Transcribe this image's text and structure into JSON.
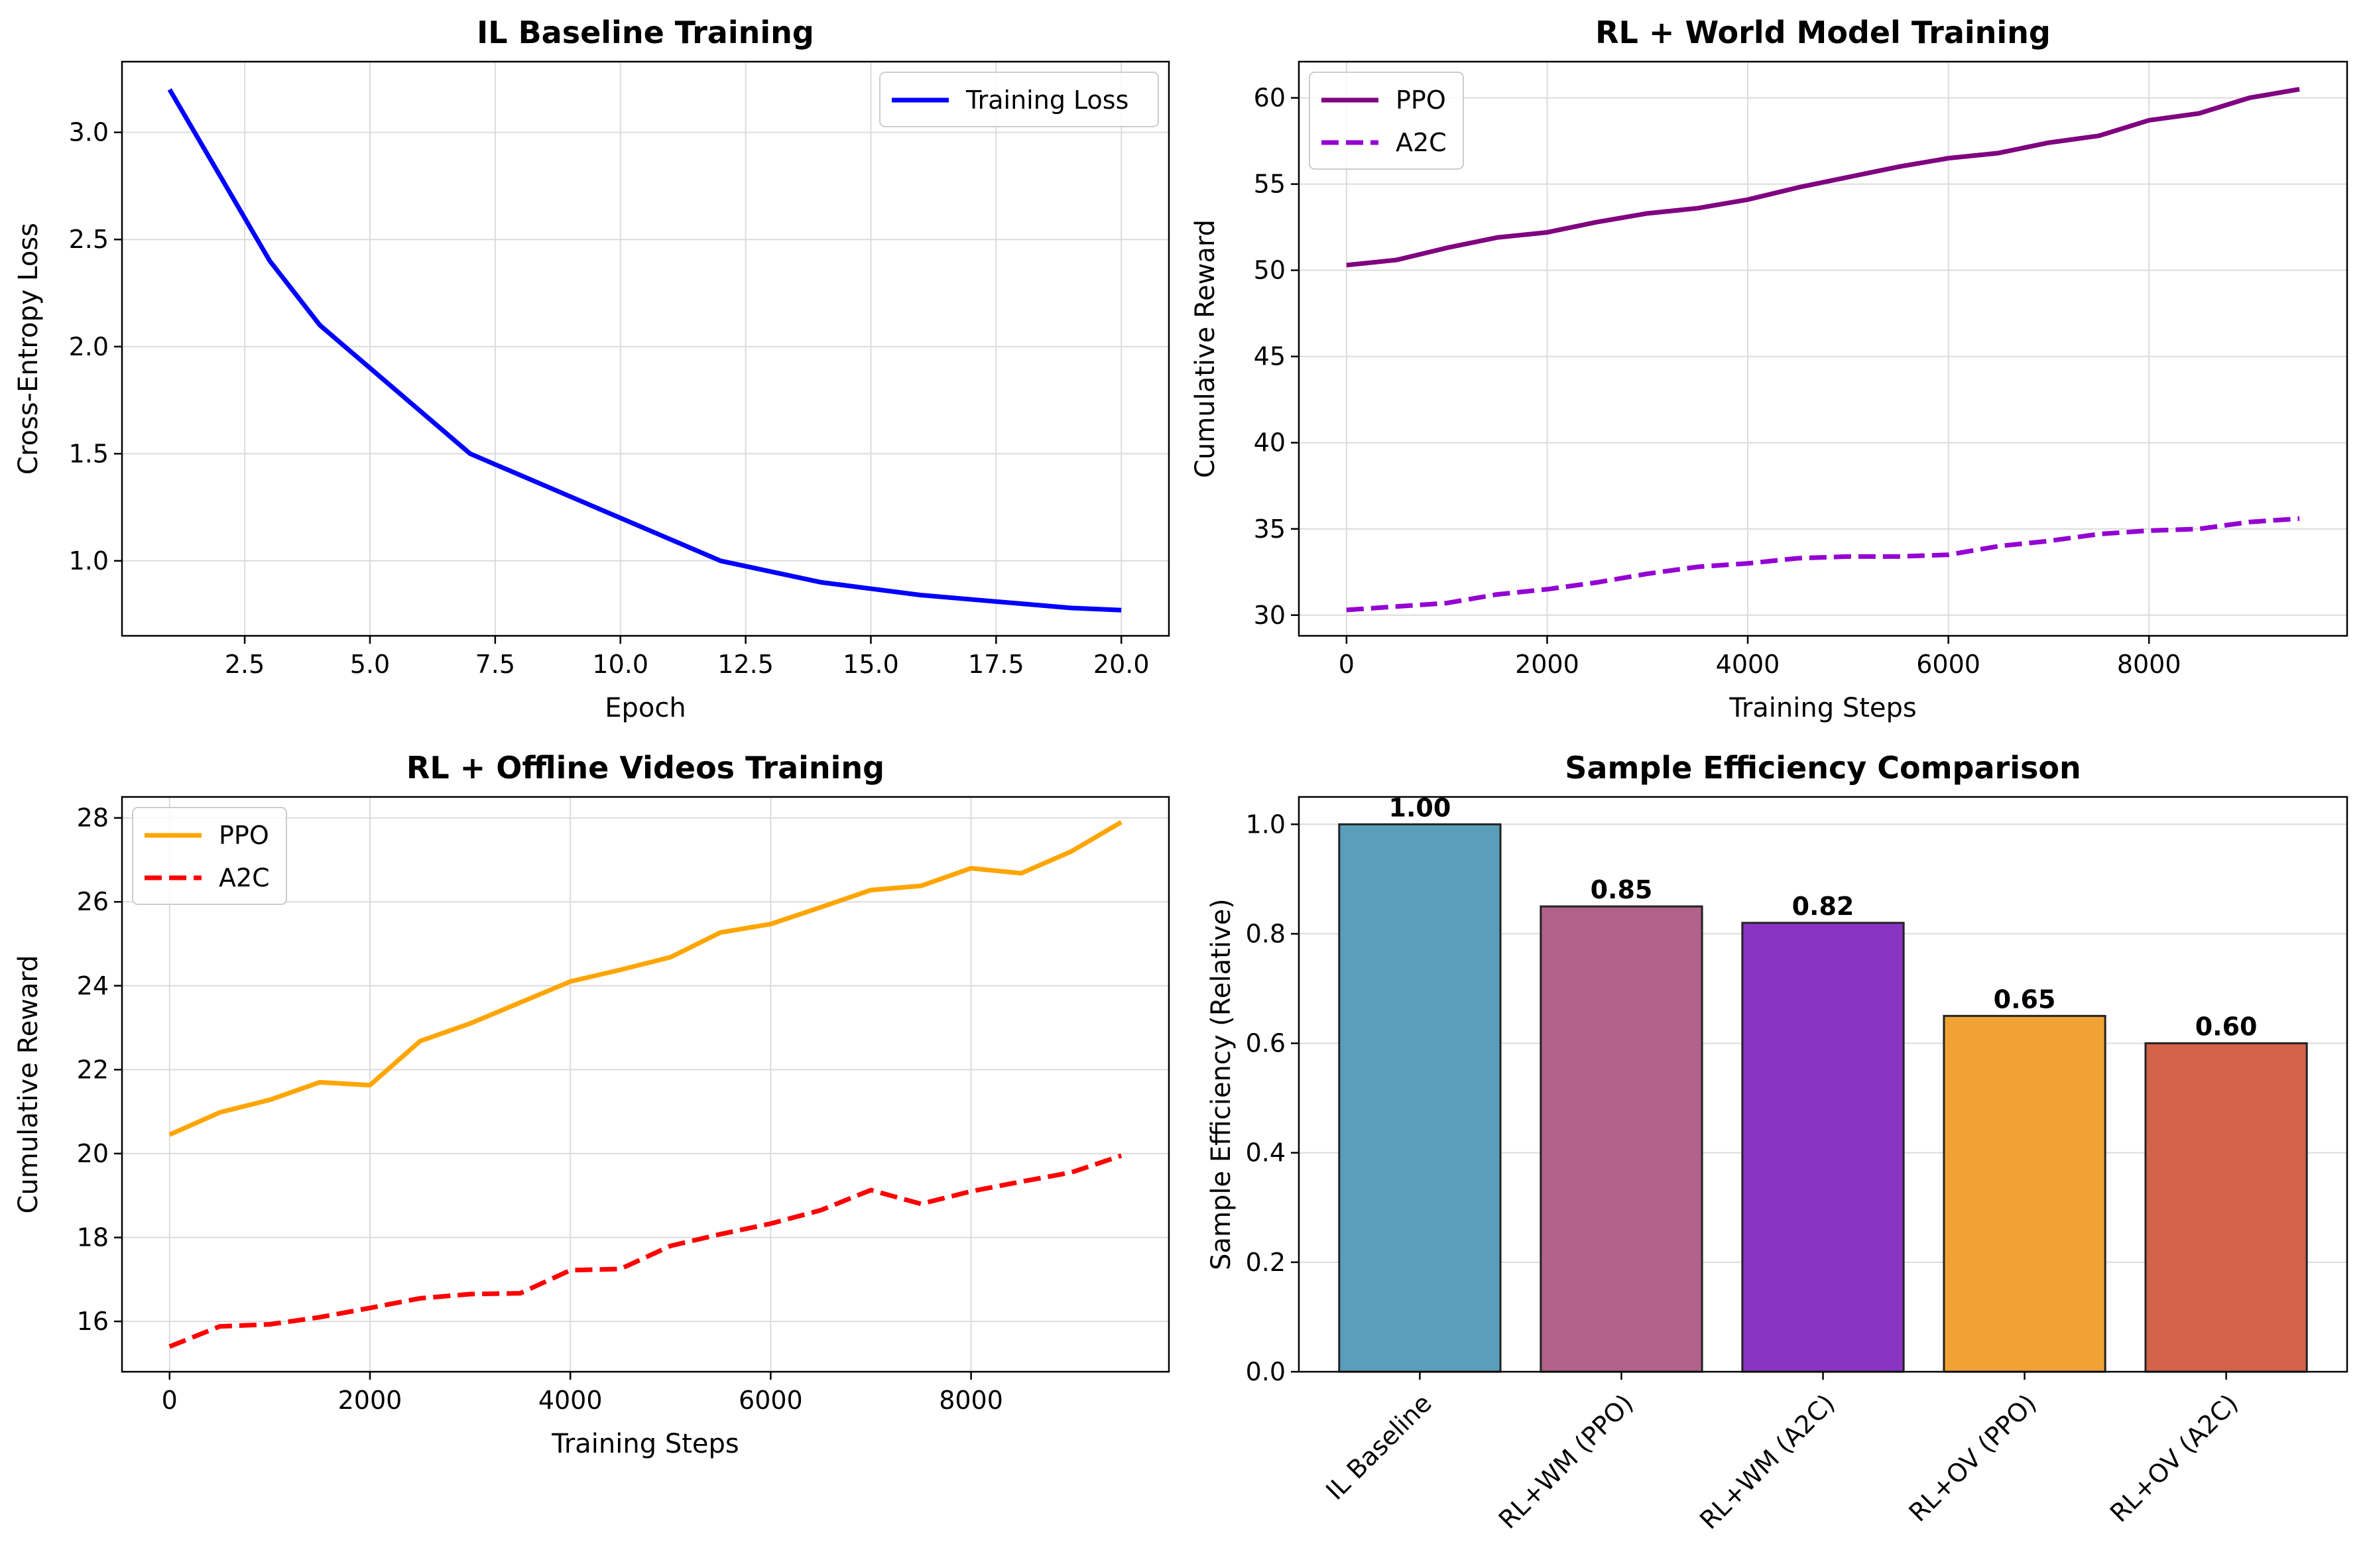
{
  "chart_data": [
    {
      "type": "line",
      "title": "IL Baseline Training",
      "xlabel": "Epoch",
      "ylabel": "Cross-Entropy Loss",
      "xlim": [
        0.05,
        20.95
      ],
      "ylim": [
        0.65,
        3.33
      ],
      "xticks": [
        2.5,
        5.0,
        7.5,
        10.0,
        12.5,
        15.0,
        17.5,
        20.0
      ],
      "xtick_labels": [
        "2.5",
        "5.0",
        "7.5",
        "10.0",
        "12.5",
        "15.0",
        "17.5",
        "20.0"
      ],
      "yticks": [
        1.0,
        1.5,
        2.0,
        2.5,
        3.0
      ],
      "ytick_labels": [
        "1.0",
        "1.5",
        "2.0",
        "2.5",
        "3.0"
      ],
      "grid": true,
      "legend_position": "upper right",
      "series": [
        {
          "name": "Training Loss",
          "color": "#0000ff",
          "dash": "solid",
          "x": [
            1,
            2,
            3,
            4,
            5,
            6,
            7,
            8,
            9,
            10,
            11,
            12,
            13,
            14,
            15,
            16,
            17,
            18,
            19,
            20
          ],
          "y": [
            3.2,
            2.8,
            2.4,
            2.1,
            1.9,
            1.7,
            1.5,
            1.4,
            1.3,
            1.2,
            1.1,
            1.0,
            0.95,
            0.9,
            0.87,
            0.84,
            0.82,
            0.8,
            0.78,
            0.77
          ]
        }
      ]
    },
    {
      "type": "line",
      "title": "RL + World Model Training",
      "xlabel": "Training Steps",
      "ylabel": "Cumulative Reward",
      "xlim": [
        -475,
        9975
      ],
      "ylim": [
        28.8,
        62.1
      ],
      "xticks": [
        0,
        2000,
        4000,
        6000,
        8000
      ],
      "xtick_labels": [
        "0",
        "2000",
        "4000",
        "6000",
        "8000"
      ],
      "yticks": [
        30,
        35,
        40,
        45,
        50,
        55,
        60
      ],
      "ytick_labels": [
        "30",
        "35",
        "40",
        "45",
        "50",
        "55",
        "60"
      ],
      "grid": true,
      "legend_position": "upper left",
      "series": [
        {
          "name": "PPO",
          "color": "#800080",
          "dash": "solid",
          "x": [
            0,
            500,
            1000,
            1500,
            2000,
            2500,
            3000,
            3500,
            4000,
            4500,
            5000,
            5500,
            6000,
            6500,
            7000,
            7500,
            8000,
            8500,
            9000,
            9500
          ],
          "y": [
            50.3,
            50.6,
            51.3,
            51.9,
            52.2,
            52.8,
            53.3,
            53.6,
            54.1,
            54.8,
            55.4,
            56.0,
            56.5,
            56.8,
            57.4,
            57.8,
            58.7,
            59.1,
            60.0,
            60.5
          ]
        },
        {
          "name": "A2C",
          "color": "#9400d3",
          "dash": "dashed",
          "x": [
            0,
            500,
            1000,
            1500,
            2000,
            2500,
            3000,
            3500,
            4000,
            4500,
            5000,
            5500,
            6000,
            6500,
            7000,
            7500,
            8000,
            8500,
            9000,
            9500
          ],
          "y": [
            30.3,
            30.5,
            30.7,
            31.2,
            31.5,
            31.9,
            32.4,
            32.8,
            33.0,
            33.3,
            33.4,
            33.4,
            33.5,
            34.0,
            34.3,
            34.7,
            34.9,
            35.0,
            35.4,
            35.6
          ]
        }
      ]
    },
    {
      "type": "line",
      "title": "RL + Offline Videos Training",
      "xlabel": "Training Steps",
      "ylabel": "Cumulative Reward",
      "xlim": [
        -475,
        9975
      ],
      "ylim": [
        14.8,
        28.5
      ],
      "xticks": [
        0,
        2000,
        4000,
        6000,
        8000
      ],
      "xtick_labels": [
        "0",
        "2000",
        "4000",
        "6000",
        "8000"
      ],
      "yticks": [
        16,
        18,
        20,
        22,
        24,
        26,
        28
      ],
      "ytick_labels": [
        "16",
        "18",
        "20",
        "22",
        "24",
        "26",
        "28"
      ],
      "grid": true,
      "legend_position": "upper left",
      "series": [
        {
          "name": "PPO",
          "color": "#ffa500",
          "dash": "solid",
          "x": [
            0,
            500,
            1000,
            1500,
            2000,
            2500,
            3000,
            3500,
            4000,
            4500,
            5000,
            5500,
            6000,
            6500,
            7000,
            7500,
            8000,
            8500,
            9000,
            9500
          ],
          "y": [
            20.45,
            20.98,
            21.28,
            21.7,
            21.63,
            22.68,
            23.1,
            23.6,
            24.1,
            24.38,
            24.68,
            25.27,
            25.47,
            25.87,
            26.28,
            26.38,
            26.8,
            26.68,
            27.2,
            27.9
          ]
        },
        {
          "name": "A2C",
          "color": "#ff0000",
          "dash": "dashed",
          "x": [
            0,
            500,
            1000,
            1500,
            2000,
            2500,
            3000,
            3500,
            4000,
            4500,
            5000,
            5500,
            6000,
            6500,
            7000,
            7500,
            8000,
            8500,
            9000,
            9500
          ],
          "y": [
            15.4,
            15.88,
            15.93,
            16.1,
            16.32,
            16.55,
            16.65,
            16.67,
            17.22,
            17.25,
            17.8,
            18.08,
            18.33,
            18.65,
            19.13,
            18.8,
            19.1,
            19.33,
            19.55,
            19.95
          ]
        }
      ]
    },
    {
      "type": "bar",
      "title": "Sample Efficiency Comparison",
      "xlabel": "",
      "ylabel": "Sample Efficiency (Relative)",
      "ylim": [
        0.0,
        1.05
      ],
      "yticks": [
        0.0,
        0.2,
        0.4,
        0.6,
        0.8,
        1.0
      ],
      "ytick_labels": [
        "0.0",
        "0.2",
        "0.4",
        "0.6",
        "0.8",
        "1.0"
      ],
      "grid": true,
      "categories": [
        "IL Baseline",
        "RL+WM (PPO)",
        "RL+WM (A2C)",
        "RL+OV (PPO)",
        "RL+OV (A2C)"
      ],
      "values": [
        1.0,
        0.85,
        0.82,
        0.65,
        0.6
      ],
      "value_labels": [
        "1.00",
        "0.85",
        "0.82",
        "0.65",
        "0.60"
      ],
      "colors": [
        "#5a9ebc",
        "#b2628a",
        "#8934c3",
        "#f0a334",
        "#d2624a"
      ]
    }
  ]
}
